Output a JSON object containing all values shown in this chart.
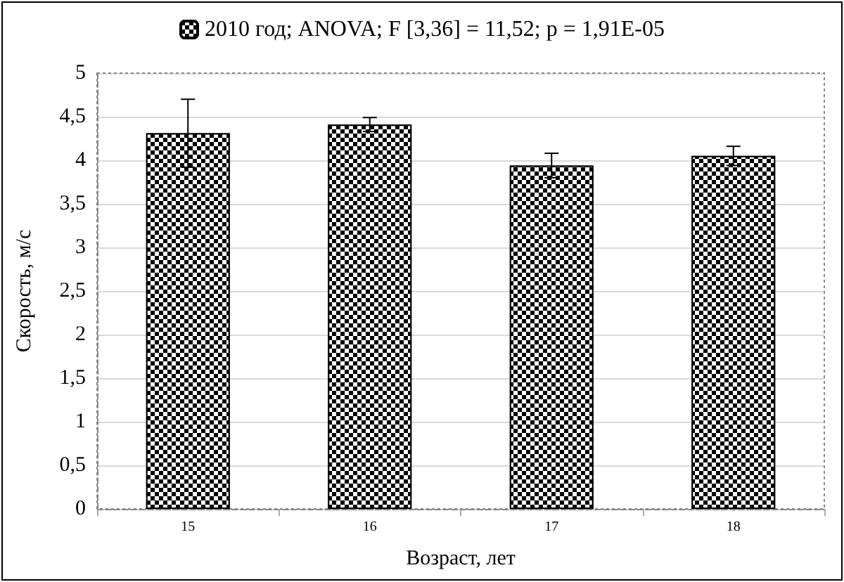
{
  "chart_data": {
    "type": "bar",
    "xlabel": "Возраст, лет",
    "ylabel": "Скорость, м/с",
    "categories": [
      "15",
      "16",
      "17",
      "18"
    ],
    "series": [
      {
        "name": "2010 год; ANOVA; F [3,36] = 11,52; p = 1,91E-05",
        "color": "#000000",
        "values": [
          4.31,
          4.41,
          3.94,
          4.05
        ],
        "errors": [
          0.39,
          0.08,
          0.14,
          0.11
        ]
      }
    ],
    "ylim": [
      0,
      5
    ],
    "yticks": [
      0,
      {
        "value": 0.5,
        "label": "0,5"
      },
      1,
      {
        "value": 1.5,
        "label": "1,5"
      },
      2,
      {
        "value": 2.5,
        "label": "2,5"
      },
      3,
      {
        "value": 3.5,
        "label": "3,5"
      },
      4,
      {
        "value": 4.5,
        "label": "4,5"
      },
      5
    ],
    "grid": "y",
    "legend": "top"
  }
}
